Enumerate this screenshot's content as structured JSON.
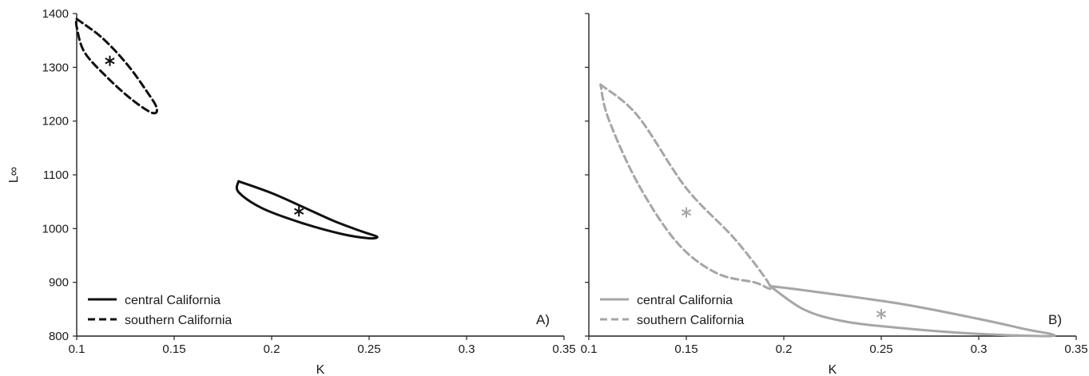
{
  "chart_data": [
    {
      "type": "line",
      "panel_label": "A)",
      "xlabel": "K",
      "ylabel": "L∞",
      "xlim": [
        0.1,
        0.35
      ],
      "ylim": [
        800,
        1400
      ],
      "x_ticks": [
        0.1,
        0.15,
        0.2,
        0.25,
        0.3,
        0.35
      ],
      "x_tick_labels": [
        "0.1",
        "0.15",
        "0.2",
        "0.25",
        "0.3",
        "0.35"
      ],
      "y_ticks": [
        800,
        900,
        1000,
        1100,
        1200,
        1300,
        1400
      ],
      "y_tick_labels": [
        "800",
        "900",
        "1000",
        "1100",
        "1200",
        "1300",
        "1400"
      ],
      "grid": false,
      "legend_position": "bottom-left",
      "series": [
        {
          "name": "central California",
          "color": "#111111",
          "line_style": "solid",
          "estimate": {
            "x": 0.214,
            "y": 1032
          },
          "contour": [
            [
              0.183,
              1088
            ],
            [
              0.2,
              1066
            ],
            [
              0.215,
              1042
            ],
            [
              0.232,
              1014
            ],
            [
              0.246,
              995
            ],
            [
              0.254,
              985
            ],
            [
              0.25,
              982
            ],
            [
              0.236,
              990
            ],
            [
              0.215,
              1011
            ],
            [
              0.195,
              1038
            ],
            [
              0.183,
              1068
            ],
            [
              0.183,
              1088
            ]
          ]
        },
        {
          "name": "southern California",
          "color": "#111111",
          "line_style": "dashed",
          "estimate": {
            "x": 0.117,
            "y": 1312
          },
          "contour": [
            [
              0.1,
              1390
            ],
            [
              0.113,
              1355
            ],
            [
              0.126,
              1305
            ],
            [
              0.136,
              1255
            ],
            [
              0.141,
              1225
            ],
            [
              0.139,
              1215
            ],
            [
              0.129,
              1238
            ],
            [
              0.116,
              1280
            ],
            [
              0.104,
              1328
            ],
            [
              0.1,
              1375
            ],
            [
              0.1,
              1390
            ]
          ]
        }
      ]
    },
    {
      "type": "line",
      "panel_label": "B)",
      "xlabel": "K",
      "ylabel": "",
      "xlim": [
        0.1,
        0.35
      ],
      "ylim": [
        800,
        1400
      ],
      "x_ticks": [
        0.1,
        0.15,
        0.2,
        0.25,
        0.3,
        0.35
      ],
      "x_tick_labels": [
        "0.1",
        "0.15",
        "0.2",
        "0.25",
        "0.3",
        "0.35"
      ],
      "y_ticks": [
        800,
        900,
        1000,
        1100,
        1200,
        1300,
        1400
      ],
      "grid": false,
      "legend_position": "bottom-left",
      "series": [
        {
          "name": "central California",
          "color": "#a6a6a6",
          "line_style": "solid",
          "estimate": {
            "x": 0.25,
            "y": 841
          },
          "contour": [
            [
              0.193,
              893
            ],
            [
              0.215,
              883
            ],
            [
              0.26,
              860
            ],
            [
              0.3,
              832
            ],
            [
              0.325,
              812
            ],
            [
              0.337,
              804
            ],
            [
              0.335,
              800
            ],
            [
              0.3,
              804
            ],
            [
              0.26,
              815
            ],
            [
              0.23,
              828
            ],
            [
              0.21,
              850
            ],
            [
              0.193,
              893
            ]
          ]
        },
        {
          "name": "southern California",
          "color": "#a6a6a6",
          "line_style": "dashed",
          "estimate": {
            "x": 0.15,
            "y": 1030
          },
          "contour": [
            [
              0.106,
              1268
            ],
            [
              0.125,
              1210
            ],
            [
              0.15,
              1075
            ],
            [
              0.175,
              980
            ],
            [
              0.193,
              893
            ],
            [
              0.185,
              900
            ],
            [
              0.165,
              918
            ],
            [
              0.145,
              975
            ],
            [
              0.125,
              1085
            ],
            [
              0.11,
              1205
            ],
            [
              0.106,
              1268
            ]
          ]
        }
      ]
    }
  ]
}
